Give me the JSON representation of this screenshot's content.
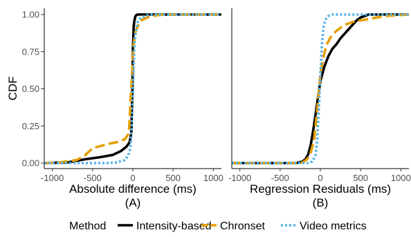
{
  "chart_data": {
    "type": "line",
    "ylabel": "CDF",
    "y_ticks": [
      "0.00",
      "0.25",
      "0.50",
      "0.75",
      "1.00"
    ],
    "ylim": [
      0,
      1
    ],
    "legend": {
      "title": "Method",
      "placement": "bottom",
      "entries": [
        {
          "name": "Intensity-based",
          "color": "#000000",
          "dash": "solid"
        },
        {
          "name": "Chronset",
          "color": "#E69F00",
          "dash": "dashed"
        },
        {
          "name": "Video metrics",
          "color": "#56B4E9",
          "dash": "dotted"
        }
      ]
    },
    "panels": [
      {
        "xlabel": "Absolute difference (ms)",
        "sublabel": "(A)",
        "xlim": [
          -1100,
          1100
        ],
        "x_ticks": [
          "-1000",
          "-500",
          "0",
          "500",
          "1000"
        ],
        "x_tick_values": [
          -1000,
          -500,
          0,
          500,
          1000
        ],
        "series": [
          {
            "name": "Intensity-based",
            "color": "#000000",
            "dash": "solid",
            "x": [
              -1100,
              -800,
              -600,
              -400,
              -250,
              -150,
              -80,
              -40,
              -20,
              -5,
              0,
              10,
              20,
              30,
              40,
              60,
              100,
              1100
            ],
            "y": [
              0.0,
              0.005,
              0.025,
              0.04,
              0.055,
              0.08,
              0.11,
              0.14,
              0.2,
              0.5,
              0.75,
              0.92,
              0.96,
              0.985,
              0.995,
              1.0,
              1.0,
              1.0
            ]
          },
          {
            "name": "Chronset",
            "color": "#E69F00",
            "dash": "dashed",
            "x": [
              -1100,
              -900,
              -700,
              -600,
              -500,
              -400,
              -300,
              -200,
              -100,
              -50,
              -20,
              0,
              10,
              30,
              60,
              100,
              200,
              300,
              400,
              1100
            ],
            "y": [
              0.0,
              0.005,
              0.02,
              0.05,
              0.1,
              0.115,
              0.13,
              0.14,
              0.16,
              0.2,
              0.5,
              0.7,
              0.8,
              0.88,
              0.92,
              0.96,
              0.985,
              0.995,
              1.0,
              1.0
            ]
          },
          {
            "name": "Video metrics",
            "color": "#56B4E9",
            "dash": "dotted",
            "x": [
              -1100,
              -300,
              -200,
              -100,
              -60,
              -30,
              -10,
              0,
              20,
              40,
              60,
              100,
              150,
              200,
              1100
            ],
            "y": [
              0.0,
              0.0,
              0.005,
              0.02,
              0.05,
              0.1,
              0.3,
              0.5,
              0.8,
              0.9,
              0.95,
              0.98,
              0.99,
              1.0,
              1.0
            ]
          }
        ]
      },
      {
        "xlabel": "Regression Residuals (ms)",
        "sublabel": "(B)",
        "xlim": [
          -1100,
          1100
        ],
        "x_ticks": [
          "-1000",
          "-500",
          "0",
          "500",
          "1000"
        ],
        "x_tick_values": [
          -1000,
          -500,
          0,
          500,
          1000
        ],
        "series": [
          {
            "name": "Intensity-based",
            "color": "#000000",
            "dash": "solid",
            "x": [
              -1100,
              -300,
              -220,
              -180,
              -150,
              -120,
              -80,
              -40,
              0,
              50,
              100,
              150,
              200,
              250,
              300,
              350,
              400,
              450,
              500,
              550,
              600,
              700,
              1100
            ],
            "y": [
              0.0,
              0.0,
              0.01,
              0.03,
              0.06,
              0.12,
              0.25,
              0.4,
              0.55,
              0.65,
              0.72,
              0.77,
              0.8,
              0.84,
              0.87,
              0.9,
              0.93,
              0.96,
              0.98,
              0.99,
              1.0,
              1.0,
              1.0
            ]
          },
          {
            "name": "Chronset",
            "color": "#E69F00",
            "dash": "dashed",
            "x": [
              -1100,
              -250,
              -200,
              -160,
              -120,
              -80,
              -40,
              0,
              40,
              80,
              120,
              160,
              200,
              250,
              300,
              350,
              400,
              500,
              600,
              700,
              800,
              1100
            ],
            "y": [
              0.0,
              0.0,
              0.01,
              0.03,
              0.07,
              0.15,
              0.35,
              0.6,
              0.72,
              0.8,
              0.84,
              0.87,
              0.89,
              0.91,
              0.93,
              0.94,
              0.95,
              0.96,
              0.97,
              0.98,
              0.99,
              1.0
            ]
          },
          {
            "name": "Video metrics",
            "color": "#56B4E9",
            "dash": "dotted",
            "x": [
              -1100,
              -150,
              -100,
              -60,
              -40,
              -20,
              0,
              20,
              40,
              60,
              80,
              100,
              150,
              1100
            ],
            "y": [
              0.0,
              0.0,
              0.01,
              0.05,
              0.15,
              0.35,
              0.6,
              0.8,
              0.92,
              0.96,
              0.98,
              0.99,
              1.0,
              1.0
            ]
          }
        ]
      }
    ]
  }
}
